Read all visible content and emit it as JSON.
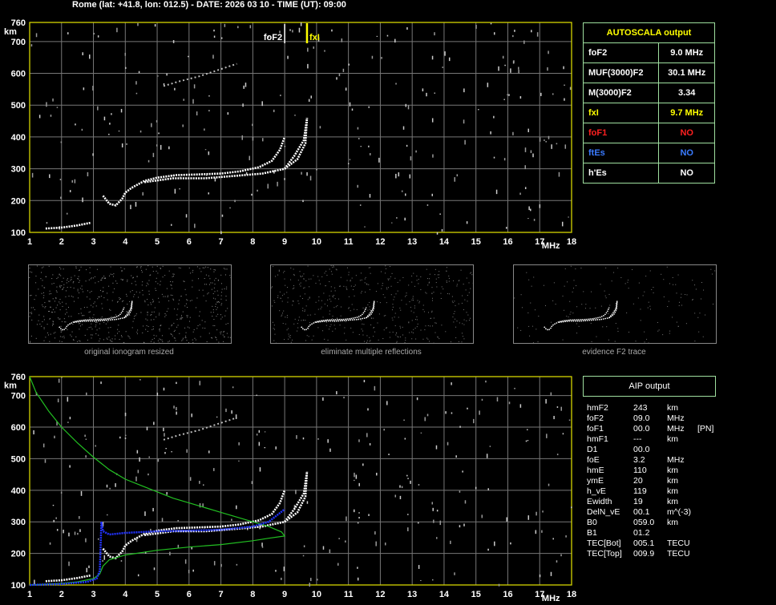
{
  "header": "Rome (lat: +41.8, lon: 012.5) - DATE: 2026 03 10 - TIME (UT): 09:00",
  "axes": {
    "y_unit": "km",
    "x_unit": "MHz",
    "y_ticks": [
      "760",
      "700",
      "600",
      "500",
      "400",
      "300",
      "200",
      "100"
    ],
    "x_ticks": [
      "1",
      "2",
      "3",
      "4",
      "5",
      "6",
      "7",
      "8",
      "9",
      "10",
      "11",
      "12",
      "13",
      "14",
      "15",
      "16",
      "17",
      "18"
    ]
  },
  "markers": {
    "fof2_label": "foF2",
    "fxi_label": "fxI"
  },
  "autoscala": {
    "title": "AUTOSCALA output",
    "rows": [
      {
        "label": "foF2",
        "value": "9.0 MHz",
        "color": "#ffffff"
      },
      {
        "label": "MUF(3000)F2",
        "value": "30.1 MHz",
        "color": "#ffffff"
      },
      {
        "label": "M(3000)F2",
        "value": "3.34",
        "color": "#ffffff"
      },
      {
        "label": "fxI",
        "value": "9.7 MHz",
        "color": "#ffff00"
      },
      {
        "label": "foF1",
        "value": "NO",
        "color": "#ff2020"
      },
      {
        "label": "ftEs",
        "value": "NO",
        "color": "#3a7bff"
      },
      {
        "label": "h'Es",
        "value": "NO",
        "color": "#ffffff"
      }
    ]
  },
  "thumbnails": [
    {
      "caption": "original ionogram resized"
    },
    {
      "caption": "eliminate multiple reflections"
    },
    {
      "caption": "evidence F2 trace"
    }
  ],
  "aip": {
    "title": "AIP output",
    "rows": [
      {
        "name": "hmF2",
        "value": "243",
        "unit": "km",
        "extra": ""
      },
      {
        "name": "foF2",
        "value": "09.0",
        "unit": "MHz",
        "extra": ""
      },
      {
        "name": "foF1",
        "value": "00.0",
        "unit": "MHz",
        "extra": "[PN]"
      },
      {
        "name": "hmF1",
        "value": "---",
        "unit": "km",
        "extra": ""
      },
      {
        "name": "D1",
        "value": "00.0",
        "unit": "",
        "extra": ""
      },
      {
        "name": "foE",
        "value": "3.2",
        "unit": "MHz",
        "extra": ""
      },
      {
        "name": "hmE",
        "value": "110",
        "unit": "km",
        "extra": ""
      },
      {
        "name": "ymE",
        "value": "20",
        "unit": "km",
        "extra": ""
      },
      {
        "name": "h_vE",
        "value": "119",
        "unit": "km",
        "extra": ""
      },
      {
        "name": "Ewidth",
        "value": "19",
        "unit": "km",
        "extra": ""
      },
      {
        "name": "DelN_vE",
        "value": "00.1",
        "unit": "m^(-3)",
        "extra": ""
      },
      {
        "name": "B0",
        "value": "059.0",
        "unit": "km",
        "extra": ""
      },
      {
        "name": "B1",
        "value": "01.2",
        "unit": "",
        "extra": ""
      },
      {
        "name": "TEC[Bot]",
        "value": "005.1",
        "unit": "TECU",
        "extra": ""
      },
      {
        "name": "TEC[Top]",
        "value": "009.9",
        "unit": "TECU",
        "extra": ""
      }
    ]
  },
  "chart_data": {
    "type": "scatter",
    "xlim": [
      1,
      18
    ],
    "ylim": [
      100,
      760
    ],
    "grid": true,
    "fof2_mhz": 9.0,
    "fxi_mhz": 9.7,
    "trace_E_o": [
      [
        1.5,
        112
      ],
      [
        2,
        115
      ],
      [
        2.5,
        122
      ],
      [
        2.9,
        130
      ]
    ],
    "trace_F_o": [
      [
        3.3,
        215
      ],
      [
        3.5,
        190
      ],
      [
        3.7,
        185
      ],
      [
        3.9,
        205
      ],
      [
        4.0,
        225
      ],
      [
        4.2,
        240
      ],
      [
        4.6,
        262
      ],
      [
        5.0,
        272
      ],
      [
        5.6,
        280
      ],
      [
        6.2,
        282
      ],
      [
        7.0,
        285
      ],
      [
        7.6,
        292
      ],
      [
        8.2,
        305
      ],
      [
        8.6,
        325
      ],
      [
        8.85,
        360
      ],
      [
        9.0,
        400
      ]
    ],
    "trace_F_o2": [
      [
        4.6,
        258
      ],
      [
        5.5,
        270
      ],
      [
        6.5,
        270
      ],
      [
        7.5,
        278
      ],
      [
        8.3,
        285
      ],
      [
        9.0,
        300
      ],
      [
        9.4,
        330
      ],
      [
        9.65,
        380
      ],
      [
        9.7,
        460
      ]
    ],
    "trace_F_x": [
      [
        9.0,
        300
      ],
      [
        9.3,
        340
      ],
      [
        9.6,
        390
      ],
      [
        9.7,
        460
      ]
    ],
    "trace_F_2hop": [
      [
        5.2,
        560
      ],
      [
        5.7,
        575
      ],
      [
        6.3,
        590
      ],
      [
        6.9,
        610
      ],
      [
        7.5,
        630
      ]
    ],
    "profile_green": [
      [
        1.0,
        760
      ],
      [
        1.2,
        710
      ],
      [
        1.6,
        650
      ],
      [
        2.0,
        600
      ],
      [
        2.5,
        550
      ],
      [
        3.0,
        505
      ],
      [
        3.5,
        465
      ],
      [
        4.0,
        435
      ],
      [
        4.5,
        415
      ],
      [
        5.0,
        395
      ],
      [
        5.5,
        375
      ],
      [
        6.0,
        360
      ],
      [
        6.5,
        345
      ],
      [
        7.0,
        330
      ],
      [
        7.5,
        315
      ],
      [
        8.0,
        300
      ],
      [
        8.5,
        285
      ],
      [
        8.9,
        268
      ],
      [
        9.0,
        255
      ],
      [
        8.5,
        248
      ],
      [
        8.0,
        240
      ],
      [
        7.0,
        228
      ],
      [
        6.0,
        220
      ],
      [
        5.0,
        210
      ],
      [
        4.0,
        195
      ],
      [
        3.5,
        180
      ],
      [
        3.3,
        160
      ],
      [
        3.2,
        135
      ],
      [
        3.0,
        120
      ],
      [
        2.5,
        110
      ],
      [
        2.0,
        105
      ],
      [
        1.0,
        100
      ]
    ],
    "profile_blue": [
      [
        1.0,
        100
      ],
      [
        2.0,
        103
      ],
      [
        2.8,
        110
      ],
      [
        3.1,
        120
      ],
      [
        3.2,
        145
      ],
      [
        3.25,
        300
      ],
      [
        3.3,
        270
      ],
      [
        3.5,
        260
      ],
      [
        4.0,
        265
      ],
      [
        5.0,
        270
      ],
      [
        6.0,
        272
      ],
      [
        7.0,
        275
      ],
      [
        7.5,
        280
      ],
      [
        8.0,
        285
      ],
      [
        8.5,
        300
      ],
      [
        9.0,
        340
      ]
    ]
  }
}
